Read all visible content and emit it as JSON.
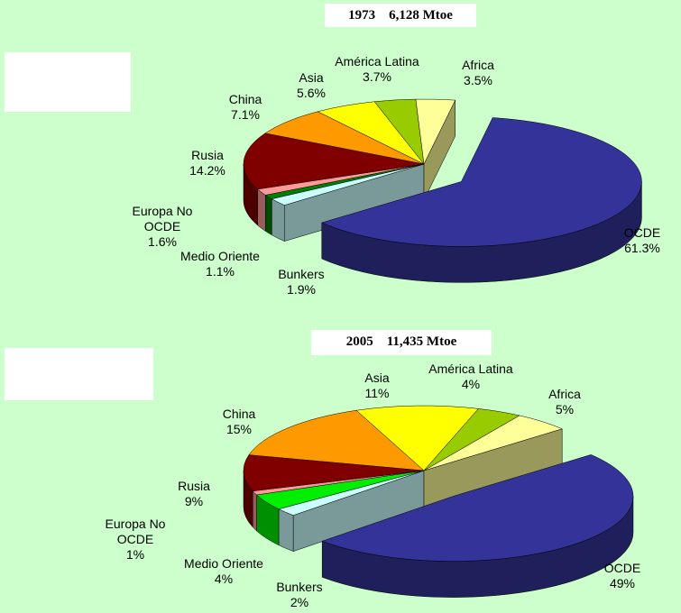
{
  "chart_data": [
    {
      "type": "pie3d",
      "title": "1973    6,128 Mtoe",
      "categories": [
        "OCDE",
        "Bunkers",
        "Medio Oriente",
        "Europa No OCDE",
        "Rusia",
        "China",
        "Asia",
        "América Latina",
        "Africa"
      ],
      "values": [
        61.3,
        1.9,
        1.1,
        1.6,
        14.2,
        7.1,
        5.6,
        3.7,
        3.5
      ],
      "value_labels": [
        "61.3%",
        "1.9%",
        "1.1%",
        "1.6%",
        "14.2%",
        "7.1%",
        "5.6%",
        "3.7%",
        "3.5%"
      ],
      "colors": [
        "#333399",
        "#ccffff",
        "#008000",
        "#ff9999",
        "#800000",
        "#ff9900",
        "#ffff00",
        "#99cc00",
        "#ffff99"
      ]
    },
    {
      "type": "pie3d",
      "title": "2005    11,435 Mtoe",
      "categories": [
        "OCDE",
        "Bunkers",
        "Medio Oriente",
        "Europa No OCDE",
        "Rusia",
        "China",
        "Asia",
        "América Latina",
        "Africa"
      ],
      "values": [
        49,
        2,
        4,
        1,
        9,
        15,
        11,
        4,
        5
      ],
      "value_labels": [
        "49%",
        "2%",
        "4%",
        "1%",
        "9%",
        "15%",
        "11%",
        "4%",
        "5%"
      ],
      "colors": [
        "#333399",
        "#ccffff",
        "#00ee00",
        "#ff9999",
        "#800000",
        "#ff9900",
        "#ffff00",
        "#99cc00",
        "#ffff99"
      ]
    }
  ]
}
